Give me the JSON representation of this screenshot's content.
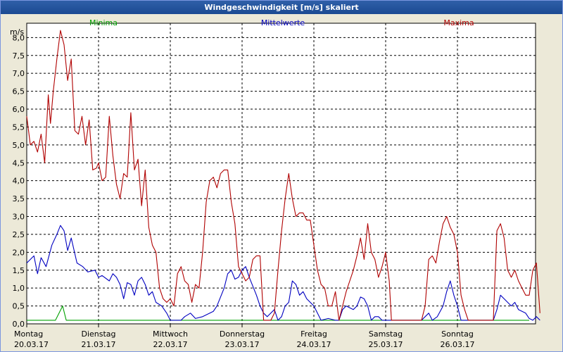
{
  "window": {
    "title": "Windgeschwindigkeit [m/s] skaliert"
  },
  "chart_data": {
    "type": "line",
    "title": "Windgeschwindigkeit [m/s] skaliert",
    "ylabel": "m/s",
    "ylim": [
      0,
      8.4
    ],
    "yticks": [
      "0,0",
      "0,5",
      "1,0",
      "1,5",
      "2,0",
      "2,5",
      "3,0",
      "3,5",
      "4,0",
      "4,5",
      "5,0",
      "5,5",
      "6,0",
      "6,5",
      "7,0",
      "7,5",
      "8,0"
    ],
    "yticks_values": [
      0,
      0.5,
      1,
      1.5,
      2,
      2.5,
      3,
      3.5,
      4,
      4.5,
      5,
      5.5,
      6,
      6.5,
      7,
      7.5,
      8
    ],
    "xlim": [
      0,
      7
    ],
    "x_day_ticks": [
      {
        "day": "Montag",
        "date": "20.03.17",
        "x": 0
      },
      {
        "day": "Dienstag",
        "date": "21.03.17",
        "x": 1
      },
      {
        "day": "Mittwoch",
        "date": "22.03.17",
        "x": 2
      },
      {
        "day": "Donnerstag",
        "date": "23.03.17",
        "x": 3
      },
      {
        "day": "Freitag",
        "date": "24.03.17",
        "x": 4
      },
      {
        "day": "Samstag",
        "date": "25.03.17",
        "x": 5
      },
      {
        "day": "Sonntag",
        "date": "26.03.17",
        "x": 6
      }
    ],
    "grid": true,
    "series": [
      {
        "name": "Minima",
        "color": "#00a000",
        "points": [
          [
            0,
            0.1
          ],
          [
            0.4,
            0.1
          ],
          [
            0.45,
            0.3
          ],
          [
            0.5,
            0.5
          ],
          [
            0.55,
            0.1
          ],
          [
            7,
            0.1
          ]
        ]
      },
      {
        "name": "Mittelwerte",
        "color": "#0000c0",
        "points": [
          [
            0,
            1.7
          ],
          [
            0.05,
            1.8
          ],
          [
            0.1,
            1.9
          ],
          [
            0.15,
            1.4
          ],
          [
            0.2,
            1.85
          ],
          [
            0.27,
            1.6
          ],
          [
            0.35,
            2.2
          ],
          [
            0.42,
            2.5
          ],
          [
            0.47,
            2.75
          ],
          [
            0.52,
            2.6
          ],
          [
            0.57,
            2.05
          ],
          [
            0.62,
            2.4
          ],
          [
            0.7,
            1.7
          ],
          [
            0.78,
            1.6
          ],
          [
            0.85,
            1.45
          ],
          [
            0.95,
            1.5
          ],
          [
            1.0,
            1.3
          ],
          [
            1.05,
            1.35
          ],
          [
            1.15,
            1.2
          ],
          [
            1.2,
            1.4
          ],
          [
            1.25,
            1.3
          ],
          [
            1.3,
            1.1
          ],
          [
            1.35,
            0.7
          ],
          [
            1.4,
            1.15
          ],
          [
            1.45,
            1.1
          ],
          [
            1.5,
            0.8
          ],
          [
            1.55,
            1.2
          ],
          [
            1.6,
            1.3
          ],
          [
            1.65,
            1.1
          ],
          [
            1.7,
            0.8
          ],
          [
            1.75,
            0.9
          ],
          [
            1.8,
            0.6
          ],
          [
            1.88,
            0.5
          ],
          [
            1.95,
            0.3
          ],
          [
            2.0,
            0.1
          ],
          [
            2.15,
            0.1
          ],
          [
            2.2,
            0.2
          ],
          [
            2.28,
            0.3
          ],
          [
            2.35,
            0.15
          ],
          [
            2.45,
            0.2
          ],
          [
            2.55,
            0.3
          ],
          [
            2.6,
            0.35
          ],
          [
            2.65,
            0.5
          ],
          [
            2.75,
            1.0
          ],
          [
            2.8,
            1.4
          ],
          [
            2.85,
            1.5
          ],
          [
            2.9,
            1.25
          ],
          [
            2.95,
            1.3
          ],
          [
            3.0,
            1.5
          ],
          [
            3.05,
            1.6
          ],
          [
            3.1,
            1.3
          ],
          [
            3.2,
            0.8
          ],
          [
            3.25,
            0.5
          ],
          [
            3.3,
            0.3
          ],
          [
            3.35,
            0.2
          ],
          [
            3.45,
            0.4
          ],
          [
            3.5,
            0.1
          ],
          [
            3.55,
            0.2
          ],
          [
            3.6,
            0.5
          ],
          [
            3.65,
            0.6
          ],
          [
            3.7,
            1.2
          ],
          [
            3.75,
            1.1
          ],
          [
            3.8,
            0.8
          ],
          [
            3.85,
            0.9
          ],
          [
            3.9,
            0.7
          ],
          [
            3.95,
            0.6
          ],
          [
            4.0,
            0.5
          ],
          [
            4.1,
            0.1
          ],
          [
            4.2,
            0.15
          ],
          [
            4.3,
            0.1
          ],
          [
            4.35,
            0.1
          ],
          [
            4.4,
            0.4
          ],
          [
            4.45,
            0.5
          ],
          [
            4.55,
            0.4
          ],
          [
            4.6,
            0.5
          ],
          [
            4.65,
            0.75
          ],
          [
            4.7,
            0.7
          ],
          [
            4.75,
            0.5
          ],
          [
            4.8,
            0.1
          ],
          [
            4.85,
            0.2
          ],
          [
            4.9,
            0.2
          ],
          [
            4.95,
            0.1
          ],
          [
            5.0,
            0.1
          ],
          [
            5.5,
            0.1
          ],
          [
            5.55,
            0.2
          ],
          [
            5.6,
            0.3
          ],
          [
            5.65,
            0.1
          ],
          [
            5.72,
            0.2
          ],
          [
            5.8,
            0.5
          ],
          [
            5.85,
            0.9
          ],
          [
            5.9,
            1.2
          ],
          [
            5.95,
            0.8
          ],
          [
            6.0,
            0.5
          ],
          [
            6.05,
            0.1
          ],
          [
            6.2,
            0.1
          ],
          [
            6.4,
            0.1
          ],
          [
            6.5,
            0.1
          ],
          [
            6.55,
            0.4
          ],
          [
            6.6,
            0.8
          ],
          [
            6.65,
            0.7
          ],
          [
            6.7,
            0.6
          ],
          [
            6.75,
            0.5
          ],
          [
            6.8,
            0.6
          ],
          [
            6.85,
            0.4
          ],
          [
            6.95,
            0.3
          ],
          [
            7.0,
            0.15
          ],
          [
            7.05,
            0.1
          ],
          [
            7.1,
            0.2
          ],
          [
            7.15,
            0.1
          ]
        ]
      },
      {
        "name": "Maxima",
        "color": "#b00000",
        "points": [
          [
            0,
            5.8
          ],
          [
            0.05,
            5.0
          ],
          [
            0.1,
            5.1
          ],
          [
            0.15,
            4.8
          ],
          [
            0.2,
            5.3
          ],
          [
            0.25,
            4.5
          ],
          [
            0.3,
            6.4
          ],
          [
            0.33,
            5.6
          ],
          [
            0.37,
            6.5
          ],
          [
            0.42,
            7.4
          ],
          [
            0.47,
            8.2
          ],
          [
            0.52,
            7.8
          ],
          [
            0.57,
            6.8
          ],
          [
            0.62,
            7.4
          ],
          [
            0.67,
            5.4
          ],
          [
            0.72,
            5.3
          ],
          [
            0.77,
            5.8
          ],
          [
            0.82,
            5.0
          ],
          [
            0.87,
            5.7
          ],
          [
            0.92,
            4.3
          ],
          [
            0.97,
            4.35
          ],
          [
            1.0,
            4.5
          ],
          [
            1.05,
            4.0
          ],
          [
            1.1,
            4.1
          ],
          [
            1.15,
            5.8
          ],
          [
            1.2,
            4.7
          ],
          [
            1.25,
            3.9
          ],
          [
            1.3,
            3.5
          ],
          [
            1.35,
            4.2
          ],
          [
            1.4,
            4.1
          ],
          [
            1.45,
            5.9
          ],
          [
            1.5,
            4.3
          ],
          [
            1.55,
            4.6
          ],
          [
            1.6,
            3.3
          ],
          [
            1.65,
            4.3
          ],
          [
            1.7,
            2.7
          ],
          [
            1.75,
            2.2
          ],
          [
            1.8,
            2.0
          ],
          [
            1.85,
            1.0
          ],
          [
            1.9,
            0.7
          ],
          [
            1.95,
            0.6
          ],
          [
            2.0,
            0.7
          ],
          [
            2.05,
            0.5
          ],
          [
            2.1,
            1.4
          ],
          [
            2.15,
            1.6
          ],
          [
            2.2,
            1.2
          ],
          [
            2.25,
            1.1
          ],
          [
            2.3,
            0.6
          ],
          [
            2.35,
            1.1
          ],
          [
            2.4,
            1.0
          ],
          [
            2.45,
            2.0
          ],
          [
            2.5,
            3.4
          ],
          [
            2.55,
            4.0
          ],
          [
            2.6,
            4.1
          ],
          [
            2.65,
            3.8
          ],
          [
            2.7,
            4.2
          ],
          [
            2.75,
            4.3
          ],
          [
            2.8,
            4.3
          ],
          [
            2.85,
            3.4
          ],
          [
            2.9,
            2.8
          ],
          [
            2.95,
            1.6
          ],
          [
            3.0,
            1.4
          ],
          [
            3.05,
            1.2
          ],
          [
            3.1,
            1.3
          ],
          [
            3.15,
            1.8
          ],
          [
            3.2,
            1.9
          ],
          [
            3.25,
            1.9
          ],
          [
            3.3,
            0.1
          ],
          [
            3.4,
            0.1
          ],
          [
            3.45,
            0.3
          ],
          [
            3.5,
            1.5
          ],
          [
            3.55,
            2.6
          ],
          [
            3.6,
            3.5
          ],
          [
            3.65,
            4.2
          ],
          [
            3.7,
            3.5
          ],
          [
            3.75,
            3.0
          ],
          [
            3.8,
            3.1
          ],
          [
            3.85,
            3.1
          ],
          [
            3.9,
            2.9
          ],
          [
            3.95,
            2.9
          ],
          [
            4.0,
            2.2
          ],
          [
            4.05,
            1.5
          ],
          [
            4.1,
            1.1
          ],
          [
            4.15,
            1.0
          ],
          [
            4.2,
            0.5
          ],
          [
            4.25,
            0.5
          ],
          [
            4.3,
            0.9
          ],
          [
            4.35,
            0.1
          ],
          [
            4.4,
            0.5
          ],
          [
            4.45,
            0.9
          ],
          [
            4.5,
            1.2
          ],
          [
            4.55,
            1.5
          ],
          [
            4.6,
            1.9
          ],
          [
            4.65,
            2.4
          ],
          [
            4.7,
            1.8
          ],
          [
            4.75,
            2.8
          ],
          [
            4.8,
            2.0
          ],
          [
            4.85,
            1.8
          ],
          [
            4.9,
            1.3
          ],
          [
            4.95,
            1.6
          ],
          [
            5.0,
            2.0
          ],
          [
            5.05,
            1.2
          ],
          [
            5.08,
            0.1
          ],
          [
            5.5,
            0.1
          ],
          [
            5.55,
            0.5
          ],
          [
            5.6,
            1.8
          ],
          [
            5.65,
            1.9
          ],
          [
            5.7,
            1.7
          ],
          [
            5.75,
            2.3
          ],
          [
            5.8,
            2.8
          ],
          [
            5.85,
            3.0
          ],
          [
            5.9,
            2.7
          ],
          [
            5.95,
            2.5
          ],
          [
            6.0,
            2.0
          ],
          [
            6.05,
            0.8
          ],
          [
            6.1,
            0.4
          ],
          [
            6.15,
            0.1
          ],
          [
            6.5,
            0.1
          ],
          [
            6.55,
            2.6
          ],
          [
            6.6,
            2.8
          ],
          [
            6.65,
            2.4
          ],
          [
            6.7,
            1.5
          ],
          [
            6.75,
            1.3
          ],
          [
            6.8,
            1.5
          ],
          [
            6.85,
            1.2
          ],
          [
            6.9,
            1.0
          ],
          [
            6.95,
            0.8
          ],
          [
            7.0,
            0.8
          ],
          [
            7.05,
            1.5
          ],
          [
            7.1,
            1.7
          ],
          [
            7.15,
            0.3
          ]
        ]
      }
    ]
  }
}
